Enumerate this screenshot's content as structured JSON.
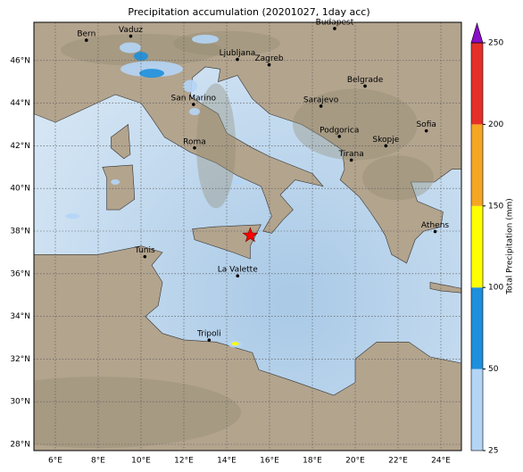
{
  "title": "Precipitation accumulation (20201027, 1day acc)",
  "map": {
    "lon_ticks": [
      {
        "value": 6,
        "label": "6°E"
      },
      {
        "value": 8,
        "label": "8°E"
      },
      {
        "value": 10,
        "label": "10°E"
      },
      {
        "value": 12,
        "label": "12°E"
      },
      {
        "value": 14,
        "label": "14°E"
      },
      {
        "value": 16,
        "label": "16°E"
      },
      {
        "value": 18,
        "label": "18°E"
      },
      {
        "value": 20,
        "label": "20°E"
      },
      {
        "value": 22,
        "label": "22°E"
      },
      {
        "value": 24,
        "label": "24°E"
      }
    ],
    "lat_ticks": [
      {
        "value": 28,
        "label": "28°N"
      },
      {
        "value": 30,
        "label": "30°N"
      },
      {
        "value": 32,
        "label": "32°N"
      },
      {
        "value": 34,
        "label": "34°N"
      },
      {
        "value": 36,
        "label": "36°N"
      },
      {
        "value": 38,
        "label": "38°N"
      },
      {
        "value": 40,
        "label": "40°N"
      },
      {
        "value": 42,
        "label": "42°N"
      },
      {
        "value": 44,
        "label": "44°N"
      },
      {
        "value": 46,
        "label": "46°N"
      }
    ],
    "cities": [
      "Bern",
      "Vaduz",
      "Budapest",
      "Ljubljana",
      "Zagreb",
      "Belgrade",
      "San Marino",
      "Sarajevo",
      "Roma",
      "Podgorica",
      "Skopje",
      "Sofia",
      "Tirana",
      "Athens",
      "Tunis",
      "La Valette",
      "Tripoli"
    ]
  },
  "colorbar": {
    "label": "Total Precipitation (mm)",
    "ticks": [
      25,
      50,
      100,
      150,
      200,
      250
    ],
    "colors": [
      "#b4d5f6",
      "#1e8fdc",
      "#ffff00",
      "#f5a623",
      "#e5302a"
    ],
    "extend_color": "#8a10c8"
  }
}
